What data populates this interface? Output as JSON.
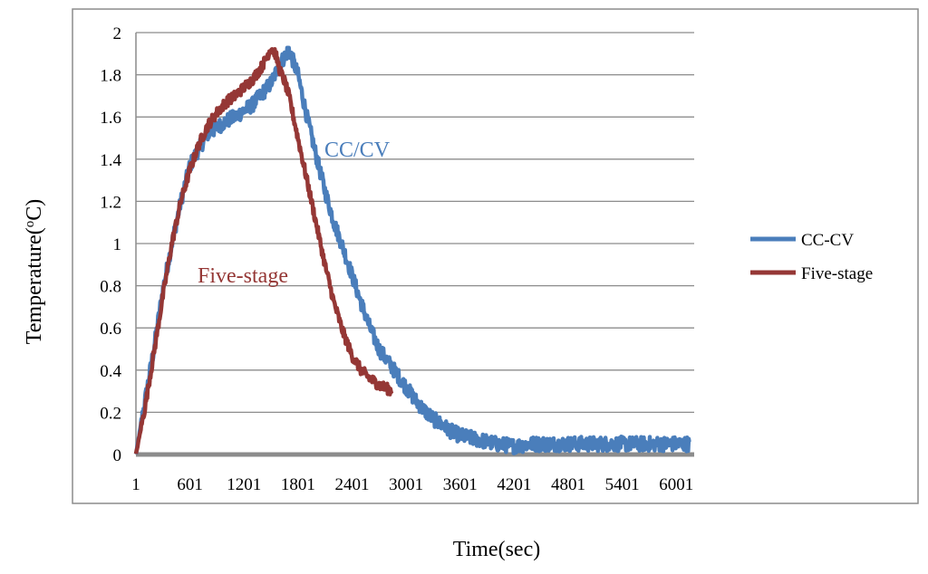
{
  "chart_data": {
    "type": "line",
    "title": "",
    "xlabel": "Time(sec)",
    "ylabel_main": "Temperature(",
    "ylabel_sup": "o",
    "ylabel_tail": "C)",
    "xlim": [
      1,
      6200
    ],
    "ylim": [
      0,
      2
    ],
    "grid": true,
    "legend_position": "right",
    "x_ticks": [
      "1",
      "601",
      "1201",
      "1801",
      "2401",
      "3001",
      "3601",
      "4201",
      "4801",
      "5401",
      "6001"
    ],
    "x_tick_values": [
      1,
      601,
      1201,
      1801,
      2401,
      3001,
      3601,
      4201,
      4801,
      5401,
      6001
    ],
    "y_ticks": [
      "0",
      "0.2",
      "0.4",
      "0.6",
      "0.8",
      "1",
      "1.2",
      "1.4",
      "1.6",
      "1.8",
      "2"
    ],
    "y_tick_values": [
      0,
      0.2,
      0.4,
      0.6,
      0.8,
      1.0,
      1.2,
      1.4,
      1.6,
      1.8,
      2.0
    ],
    "series": [
      {
        "name": "CC-CV",
        "color": "#4a7ebb",
        "noise": 0.035,
        "x": [
          1,
          100,
          200,
          300,
          400,
          500,
          600,
          700,
          800,
          900,
          1000,
          1100,
          1200,
          1300,
          1400,
          1500,
          1600,
          1700,
          1800,
          1900,
          2000,
          2100,
          2200,
          2300,
          2400,
          2500,
          2600,
          2700,
          2800,
          2900,
          3000,
          3100,
          3200,
          3300,
          3400,
          3500,
          3600,
          3700,
          3800,
          3900,
          4000,
          4100,
          4200,
          4400,
          4600,
          4800,
          5000,
          5200,
          5400,
          5600,
          5800,
          6000,
          6150
        ],
        "y": [
          0.0,
          0.25,
          0.5,
          0.78,
          1.0,
          1.2,
          1.37,
          1.45,
          1.52,
          1.55,
          1.58,
          1.6,
          1.63,
          1.66,
          1.71,
          1.76,
          1.85,
          1.92,
          1.8,
          1.6,
          1.42,
          1.25,
          1.1,
          0.98,
          0.85,
          0.72,
          0.6,
          0.5,
          0.44,
          0.38,
          0.32,
          0.26,
          0.21,
          0.17,
          0.14,
          0.11,
          0.09,
          0.08,
          0.07,
          0.06,
          0.05,
          0.045,
          0.04,
          0.05,
          0.05,
          0.05,
          0.05,
          0.05,
          0.05,
          0.05,
          0.05,
          0.05,
          0.05
        ]
      },
      {
        "name": "Five-stage",
        "color": "#953735",
        "noise": 0.025,
        "x": [
          1,
          100,
          200,
          300,
          400,
          500,
          600,
          700,
          800,
          900,
          1000,
          1100,
          1200,
          1300,
          1400,
          1450,
          1500,
          1550,
          1600,
          1650,
          1700,
          1800,
          1900,
          2000,
          2100,
          2200,
          2300,
          2400,
          2500,
          2600,
          2700,
          2800,
          2850
        ],
        "y": [
          0.0,
          0.22,
          0.48,
          0.75,
          1.0,
          1.2,
          1.35,
          1.47,
          1.56,
          1.62,
          1.67,
          1.7,
          1.74,
          1.78,
          1.84,
          1.88,
          1.93,
          1.9,
          1.82,
          1.77,
          1.7,
          1.5,
          1.3,
          1.1,
          0.9,
          0.72,
          0.58,
          0.47,
          0.4,
          0.36,
          0.33,
          0.31,
          0.3
        ]
      }
    ],
    "annotations": [
      {
        "text": "CC/CV",
        "series": "CC-CV"
      },
      {
        "text": "Five-stage",
        "series": "Five-stage"
      }
    ]
  }
}
